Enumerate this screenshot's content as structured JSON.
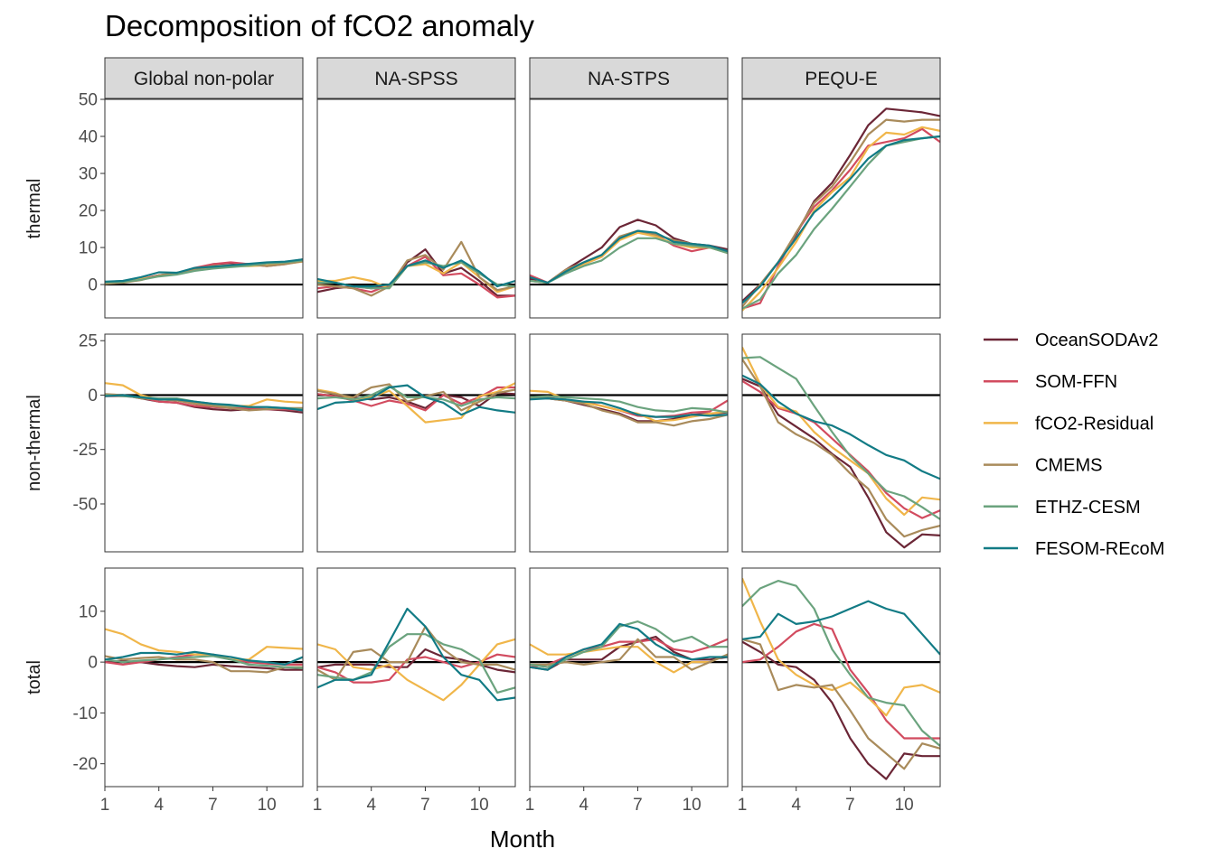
{
  "chart_data": {
    "type": "line",
    "title": "Decomposition of fCO2 anomaly",
    "xlabel": "Month",
    "ylabel": "",
    "x": [
      1,
      2,
      3,
      4,
      5,
      6,
      7,
      8,
      9,
      10,
      11,
      12
    ],
    "x_ticks": [
      1,
      4,
      7,
      10
    ],
    "x_tick_labels": [
      "1",
      "4",
      "7",
      "10"
    ],
    "xlim": [
      1,
      12
    ],
    "grid": false,
    "legend_position": "right",
    "zero_line": true,
    "columns": [
      "Global non-polar",
      "NA-SPSS",
      "NA-STPS",
      "PEQU-E"
    ],
    "rows": [
      {
        "label": "thermal",
        "ylim": [
          -9,
          50
        ],
        "ticks": [
          0,
          10,
          20,
          30,
          40,
          50
        ],
        "tick_labels": [
          "0",
          "10",
          "20",
          "30",
          "40",
          "50"
        ]
      },
      {
        "label": "non-thermal",
        "ylim": [
          -72,
          28
        ],
        "ticks": [
          -50,
          -25,
          0,
          25
        ],
        "tick_labels": [
          "-50",
          "-25",
          "0",
          "25"
        ]
      },
      {
        "label": "total",
        "ylim": [
          -24.5,
          18.5
        ],
        "ticks": [
          -20,
          -10,
          0,
          10
        ],
        "tick_labels": [
          "-20",
          "-10",
          "0",
          "10"
        ]
      }
    ],
    "series": [
      {
        "name": "OceanSODAv2",
        "color": "#6b2636"
      },
      {
        "name": "SOM-FFN",
        "color": "#d24b5f"
      },
      {
        "name": "fCO2-Residual",
        "color": "#f0b64a"
      },
      {
        "name": "CMEMS",
        "color": "#a98b5b"
      },
      {
        "name": "ETHZ-CESM",
        "color": "#6ba37e"
      },
      {
        "name": "FESOM-REcoM",
        "color": "#127b85"
      }
    ],
    "panels": [
      [
        [
          [
            0.5,
            0.8,
            1.5,
            2.5,
            3,
            4,
            5.5,
            5.8,
            5.5,
            5.8,
            6,
            6.8
          ],
          [
            0.3,
            0.8,
            1.5,
            2.5,
            3,
            4.5,
            5.5,
            6,
            5.5,
            5,
            5.5,
            6.5
          ],
          [
            0.6,
            0.8,
            1.5,
            2.3,
            3,
            3.8,
            4.5,
            5,
            5,
            5.2,
            5.6,
            6.2
          ],
          [
            0.2,
            0.5,
            1.2,
            2.5,
            3.2,
            4.2,
            5,
            5.2,
            5.5,
            5,
            5.5,
            6.3
          ],
          [
            0.6,
            0.7,
            1.3,
            2.2,
            2.7,
            3.7,
            4.3,
            4.7,
            5.1,
            5.7,
            6,
            6.5
          ],
          [
            0.8,
            1,
            2,
            3.3,
            3.2,
            4.5,
            4.8,
            5.2,
            5.6,
            6,
            6.2,
            6.8
          ]
        ],
        [
          [
            -2,
            -1,
            -0.5,
            -1,
            -0.5,
            6,
            9.5,
            3,
            4.5,
            1,
            -3,
            -3
          ],
          [
            -1,
            -0.5,
            -1,
            -2,
            0,
            5,
            7.5,
            2.5,
            3,
            0,
            -3.5,
            -3
          ],
          [
            1,
            1,
            2,
            1,
            -1,
            5,
            5.5,
            3,
            6,
            2,
            -2,
            -0.5
          ],
          [
            0,
            -0.5,
            -1,
            -3,
            -0.5,
            6.5,
            8,
            4,
            11.5,
            2,
            -1.5,
            -0.5
          ],
          [
            0.5,
            0.5,
            -0.5,
            -1,
            -1,
            5,
            6,
            5,
            6,
            3,
            0,
            -0.5
          ],
          [
            1.5,
            0.5,
            -0.5,
            -0.5,
            0,
            5,
            6.5,
            4.5,
            6.5,
            3.5,
            -0.5,
            1
          ]
        ],
        [
          [
            1.5,
            0.5,
            4,
            7,
            10,
            15.5,
            17.5,
            16,
            12.5,
            11,
            10.5,
            9.5
          ],
          [
            2.5,
            0.5,
            3.5,
            5.5,
            7.5,
            12.5,
            14.5,
            13.5,
            10.5,
            9,
            10,
            9
          ],
          [
            1,
            0.5,
            3.5,
            5.5,
            7.5,
            12,
            14,
            13,
            11,
            10,
            10,
            8.5
          ],
          [
            1,
            0.5,
            4,
            6,
            8,
            13,
            14.5,
            13.5,
            12,
            11,
            10,
            9
          ],
          [
            1,
            0.5,
            3,
            5,
            6.5,
            10,
            12.5,
            12.5,
            11,
            10.5,
            10,
            8.5
          ],
          [
            2,
            0.5,
            3.5,
            6,
            8,
            12.5,
            14.5,
            14,
            11.5,
            11,
            10.5,
            9
          ]
        ],
        [
          [
            -4.5,
            0,
            6,
            13.5,
            22.5,
            27.5,
            35,
            43,
            47.5,
            47,
            46.5,
            45.5
          ],
          [
            -6.5,
            -5,
            5,
            14,
            21,
            25.5,
            31,
            37.5,
            38.5,
            39.5,
            42,
            38.5
          ],
          [
            -7,
            -2,
            4.5,
            11.5,
            20,
            25,
            29,
            37,
            41,
            40.5,
            42.5,
            41.5
          ],
          [
            -6,
            0,
            6,
            14,
            22,
            26.5,
            33,
            40.5,
            44.5,
            44,
            44.5,
            44.5
          ],
          [
            -6.5,
            -4,
            3,
            8,
            15,
            20.5,
            26.5,
            32.5,
            37.5,
            38.5,
            39.5,
            40
          ],
          [
            -5,
            -0.5,
            6,
            12.5,
            19.5,
            23.5,
            28.5,
            34,
            37.5,
            39,
            39.5,
            40
          ]
        ]
      ],
      [
        [
          [
            0,
            0,
            -1.5,
            -3,
            -3.5,
            -5.5,
            -6.5,
            -7,
            -6.5,
            -6.5,
            -7,
            -8
          ],
          [
            -0.5,
            -0.5,
            -1,
            -3,
            -3.5,
            -5,
            -5.5,
            -6,
            -6,
            -6.5,
            -6.5,
            -7
          ],
          [
            5.5,
            4.5,
            0,
            -2,
            -2,
            -3.5,
            -4.5,
            -5,
            -5,
            -2,
            -3,
            -3.5
          ],
          [
            0.5,
            0,
            -1.5,
            -2,
            -2.5,
            -4,
            -5,
            -6,
            -7,
            -6.5,
            -6,
            -6
          ],
          [
            0,
            -0.5,
            -1,
            -1.5,
            -1.5,
            -3,
            -4,
            -5,
            -5.5,
            -5.5,
            -6,
            -6.5
          ],
          [
            -0.5,
            0,
            -1,
            -2,
            -2,
            -3,
            -4,
            -4.5,
            -5.5,
            -5.5,
            -6,
            -7
          ]
        ],
        [
          [
            0.5,
            -0.5,
            -1,
            -2,
            -1,
            -3,
            -6,
            0,
            -1,
            -5,
            1,
            0.5
          ],
          [
            0.5,
            -0.5,
            -2.5,
            -5,
            -2.5,
            -4,
            -7,
            0,
            -4,
            -1,
            3.5,
            3.5
          ],
          [
            2.5,
            1,
            -2,
            -1,
            2,
            -5,
            -12.5,
            -11.5,
            -10.5,
            -0.5,
            1.5,
            5.5
          ],
          [
            2,
            0.5,
            -1,
            3.5,
            5,
            -3,
            -0.5,
            1.5,
            -7,
            -3,
            1,
            2.5
          ],
          [
            -1.5,
            -1,
            -2,
            0,
            4,
            -1,
            -1,
            -2,
            -5,
            -2,
            -1,
            -1.5
          ],
          [
            -6.5,
            -3.5,
            -3,
            -1.5,
            3.5,
            4.5,
            -1,
            -3.5,
            -9,
            -5.5,
            -7,
            -8
          ]
        ],
        [
          [
            -1,
            -1.5,
            -2.5,
            -4.5,
            -6.5,
            -8.5,
            -12,
            -12,
            -11,
            -9,
            -8.5,
            -8
          ],
          [
            -1.5,
            -1,
            -2.5,
            -3,
            -5,
            -7,
            -9.5,
            -10,
            -9.5,
            -8,
            -7.5,
            -2.5
          ],
          [
            2,
            1.5,
            -2,
            -3.5,
            -5,
            -7,
            -8.5,
            -12,
            -11.5,
            -10,
            -8.5,
            -7.5
          ],
          [
            -1,
            -1.5,
            -2.5,
            -4,
            -7,
            -9,
            -12.5,
            -12.5,
            -14,
            -12,
            -11,
            -9
          ],
          [
            -1,
            -0.5,
            -1,
            -1.5,
            -2,
            -3,
            -5.5,
            -7,
            -7.5,
            -6,
            -6.5,
            -8
          ],
          [
            -2,
            -1.5,
            -2,
            -3,
            -3.5,
            -6,
            -9,
            -10,
            -10,
            -9,
            -9.5,
            -9
          ]
        ],
        [
          [
            7.5,
            4,
            -9,
            -14.5,
            -20,
            -27,
            -33,
            -47,
            -63,
            -70,
            -64,
            -64.5
          ],
          [
            6.5,
            1.5,
            -6,
            -8.5,
            -12.5,
            -20,
            -27.5,
            -35,
            -45,
            -52,
            -56.5,
            -53
          ],
          [
            22,
            5,
            -5.5,
            -7.5,
            -17,
            -24,
            -30,
            -36,
            -47.5,
            -55,
            -47,
            -48
          ],
          [
            16.5,
            4,
            -12.5,
            -18,
            -22,
            -27.5,
            -36,
            -43,
            -57,
            -65,
            -62,
            -60
          ],
          [
            17,
            17.5,
            12.5,
            7.5,
            -5,
            -17,
            -28,
            -36,
            -44,
            -46.5,
            -51.5,
            -57
          ],
          [
            9,
            5,
            -3,
            -8.5,
            -12,
            -14,
            -18,
            -23,
            -27.5,
            -30,
            -35,
            -38.5
          ]
        ]
      ],
      [
        [
          [
            0,
            0.2,
            0,
            -0.5,
            -0.8,
            -1,
            -0.5,
            -0.8,
            -1,
            -1.2,
            -1.5,
            -1.5
          ],
          [
            0,
            -0.5,
            0,
            0.5,
            1,
            1.5,
            1.5,
            0.5,
            0,
            -0.3,
            -0.5,
            -0.5
          ],
          [
            6.5,
            5.5,
            3.5,
            2.3,
            2,
            1.5,
            1.5,
            0.5,
            0.5,
            3,
            2.8,
            2.6
          ],
          [
            1.2,
            0.5,
            0.8,
            1,
            0.5,
            0.5,
            0,
            -1.8,
            -1.8,
            -2,
            -1,
            -1
          ],
          [
            0.5,
            0,
            0.3,
            0.5,
            0.8,
            1,
            1.2,
            0.5,
            -0.5,
            -0.7,
            -1,
            -1.2
          ],
          [
            0.5,
            1,
            1.8,
            1.8,
            1.5,
            2,
            1.5,
            1,
            0.3,
            0,
            -0.5,
            1
          ]
        ],
        [
          [
            -1,
            -0.5,
            -0.5,
            -0.5,
            -1,
            -1,
            2.5,
            1,
            0.5,
            -0.5,
            -1.5,
            -2
          ],
          [
            -1,
            -2,
            -4,
            -4,
            -3.5,
            0.5,
            1,
            0,
            -1,
            0,
            1.5,
            1
          ],
          [
            3.5,
            2.5,
            -1,
            -1.5,
            -0.5,
            -3.5,
            -5.5,
            -7.5,
            -4.5,
            -0.5,
            3.5,
            4.5
          ],
          [
            -1.5,
            -3.5,
            2,
            2.5,
            0,
            0,
            7,
            2.5,
            0,
            -0.5,
            -0.5,
            -1.5
          ],
          [
            -2.5,
            -3,
            -3.5,
            -2,
            3,
            5.5,
            5.5,
            3.5,
            2.5,
            0.5,
            -6,
            -5
          ],
          [
            -5,
            -3.5,
            -3.5,
            -2.5,
            4,
            10.5,
            7,
            1,
            -2.5,
            -3.5,
            -7.5,
            -7
          ]
        ],
        [
          [
            -1,
            -1.5,
            0.5,
            0.5,
            0.5,
            3,
            4,
            5,
            2,
            0.5,
            0.5,
            1
          ],
          [
            -1,
            -0.5,
            1,
            2.5,
            3,
            4,
            4,
            4.5,
            2.5,
            2,
            3,
            4.5
          ],
          [
            3.5,
            1.5,
            1.5,
            2,
            2.5,
            3,
            3,
            0,
            -2,
            0,
            0,
            1.5
          ],
          [
            -0.5,
            -0.5,
            0,
            -0.5,
            0,
            0.5,
            4.5,
            1,
            1,
            -1.5,
            0,
            1.5
          ],
          [
            -0.5,
            -1,
            0.5,
            2,
            3,
            7,
            8,
            6.5,
            4,
            5,
            3,
            3
          ],
          [
            -1,
            -1.5,
            1,
            2.5,
            3.5,
            7.5,
            6.5,
            3.5,
            1.5,
            0.5,
            1,
            1
          ]
        ],
        [
          [
            4,
            2,
            -0.5,
            -1,
            -3.5,
            -8,
            -15,
            -20,
            -23,
            -18,
            -18.5,
            -18.5
          ],
          [
            0,
            0.5,
            3,
            6,
            7.5,
            6.5,
            -1.5,
            -6,
            -11.5,
            -15,
            -15,
            -15
          ],
          [
            16.5,
            8,
            0.5,
            -2.5,
            -4.5,
            -5.5,
            -4,
            -7,
            -10.5,
            -5,
            -4.5,
            -6
          ],
          [
            4.5,
            3.5,
            -5.5,
            -4.5,
            -5,
            -4.5,
            -9.5,
            -15,
            -18,
            -21,
            -16,
            -17
          ],
          [
            11,
            14.5,
            16,
            15,
            10.5,
            2.5,
            -2.5,
            -7,
            -8,
            -8.5,
            -13.5,
            -16.5
          ],
          [
            4.5,
            5,
            9.5,
            7.5,
            8,
            9,
            10.5,
            12,
            10.5,
            9.5,
            5.5,
            1.5
          ]
        ]
      ]
    ]
  }
}
